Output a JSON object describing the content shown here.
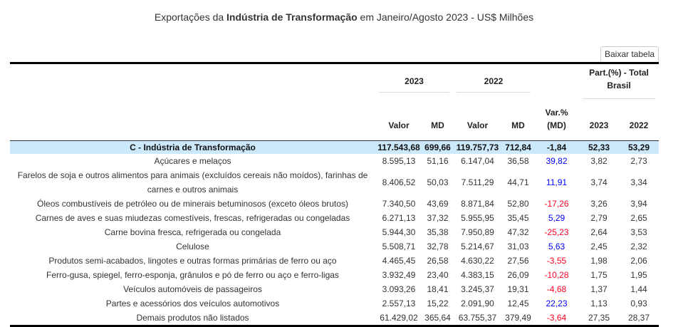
{
  "title": {
    "prefix": "Exportações da ",
    "bold": "Indústria de Transformação",
    "suffix": " em Janeiro/Agosto 2023 - US$ Milhões"
  },
  "download_label": "Baixar tabela",
  "headers": {
    "y2023": "2023",
    "y2022": "2022",
    "part": "Part.(%) - Total Brasil",
    "valor": "Valor",
    "md": "MD",
    "var": "Var.% (MD)",
    "p2023": "2023",
    "p2022": "2022"
  },
  "total": {
    "label": "C - Indústria de Transformação",
    "v23": "117.543,68",
    "md23": "699,66",
    "v22": "119.757,73",
    "md22": "712,84",
    "var": "-1,84",
    "p23": "52,33",
    "p22": "53,29"
  },
  "rows": [
    {
      "label": "Açúcares e melaços",
      "v23": "8.595,13",
      "md23": "51,16",
      "v22": "6.147,04",
      "md22": "36,58",
      "var": "39,82",
      "p23": "3,82",
      "p22": "2,73"
    },
    {
      "label": "Farelos de soja e outros alimentos para animais (excluídos cereais não moídos), farinhas de carnes e outros animais",
      "v23": "8.406,52",
      "md23": "50,03",
      "v22": "7.511,29",
      "md22": "44,71",
      "var": "11,91",
      "p23": "3,74",
      "p22": "3,34"
    },
    {
      "label": "Óleos combustíveis de petróleo ou de minerais betuminosos (exceto óleos brutos)",
      "v23": "7.340,50",
      "md23": "43,69",
      "v22": "8.871,84",
      "md22": "52,80",
      "var": "-17,26",
      "p23": "3,26",
      "p22": "3,94"
    },
    {
      "label": "Carnes de aves e suas miudezas comestíveis, frescas, refrigeradas ou congeladas",
      "v23": "6.271,13",
      "md23": "37,32",
      "v22": "5.955,95",
      "md22": "35,45",
      "var": "5,29",
      "p23": "2,79",
      "p22": "2,65"
    },
    {
      "label": "Carne bovina fresca, refrigerada ou congelada",
      "v23": "5.944,30",
      "md23": "35,38",
      "v22": "7.950,89",
      "md22": "47,32",
      "var": "-25,23",
      "p23": "2,64",
      "p22": "3,53"
    },
    {
      "label": "Celulose",
      "v23": "5.508,71",
      "md23": "32,78",
      "v22": "5.214,67",
      "md22": "31,03",
      "var": "5,63",
      "p23": "2,45",
      "p22": "2,32"
    },
    {
      "label": "Produtos semi-acabados, lingotes e outras formas primárias de ferro ou aço",
      "v23": "4.465,45",
      "md23": "26,58",
      "v22": "4.630,22",
      "md22": "27,56",
      "var": "-3,55",
      "p23": "1,98",
      "p22": "2,06"
    },
    {
      "label": "Ferro-gusa, spiegel, ferro-esponja, grânulos e pó de ferro ou aço e ferro-ligas",
      "v23": "3.932,49",
      "md23": "23,40",
      "v22": "4.383,15",
      "md22": "26,09",
      "var": "-10,28",
      "p23": "1,75",
      "p22": "1,95"
    },
    {
      "label": "Veículos automóveis de passageiros",
      "v23": "3.093,26",
      "md23": "18,41",
      "v22": "3.245,37",
      "md22": "19,31",
      "var": "-4,68",
      "p23": "1,37",
      "p22": "1,44"
    },
    {
      "label": "Partes e acessórios dos veículos automotivos",
      "v23": "2.557,13",
      "md23": "15,22",
      "v22": "2.091,90",
      "md22": "12,45",
      "var": "22,23",
      "p23": "1,13",
      "p22": "0,93"
    },
    {
      "label": "Demais produtos não listados",
      "v23": "61.429,02",
      "md23": "365,64",
      "v22": "63.755,37",
      "md22": "379,49",
      "var": "-3,64",
      "p23": "27,35",
      "p22": "28,37"
    }
  ]
}
